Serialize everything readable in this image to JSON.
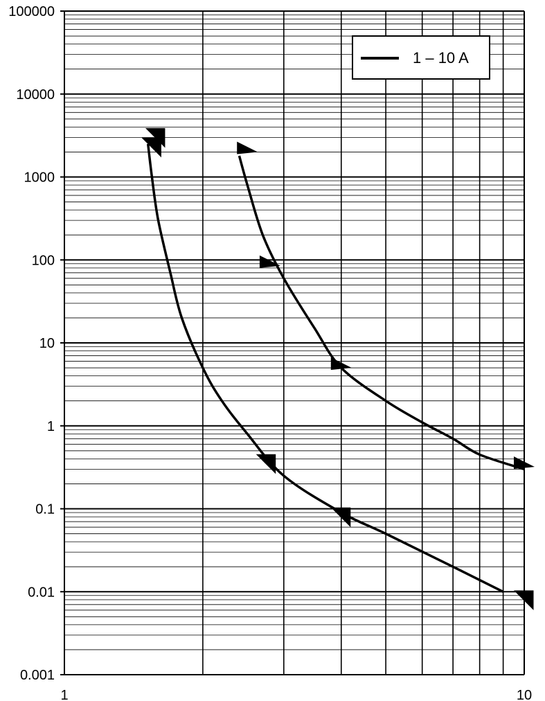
{
  "chart_data": {
    "type": "line",
    "title": "",
    "xlabel": "",
    "ylabel": "",
    "x_scale": "log",
    "y_scale": "log",
    "xlim": [
      1,
      10
    ],
    "ylim": [
      0.001,
      100000
    ],
    "grid": true,
    "legend_position": "top-right",
    "x_ticks": [
      {
        "value": 1,
        "label": "1"
      },
      {
        "value": 10,
        "label": "10"
      }
    ],
    "y_ticks": [
      {
        "value": 0.001,
        "label": "0.001"
      },
      {
        "value": 0.01,
        "label": "0.01"
      },
      {
        "value": 0.1,
        "label": "0.1"
      },
      {
        "value": 1,
        "label": "1"
      },
      {
        "value": 10,
        "label": "10"
      },
      {
        "value": 100,
        "label": "100"
      },
      {
        "value": 1000,
        "label": "1000"
      },
      {
        "value": 10000,
        "label": "10000"
      },
      {
        "value": 100000,
        "label": "100000"
      }
    ],
    "legend": [
      {
        "label": "1 – 10 A",
        "color": "#000000"
      }
    ],
    "series": [
      {
        "color": "#000000",
        "x": [
          1.52,
          1.55,
          1.6,
          1.7,
          1.8,
          2.0,
          2.2,
          2.5,
          3.0,
          4.0,
          5.0,
          7.0,
          9.0
        ],
        "y": [
          2500,
          1000,
          300,
          70,
          20,
          5,
          2,
          0.8,
          0.25,
          0.09,
          0.05,
          0.02,
          0.01
        ]
      },
      {
        "color": "#000000",
        "x": [
          2.4,
          2.5,
          2.7,
          3.0,
          3.5,
          4.0,
          5.0,
          6.0,
          7.0,
          8.0,
          10.0
        ],
        "y": [
          1800,
          800,
          200,
          60,
          15,
          5,
          2,
          1.1,
          0.7,
          0.45,
          0.3
        ]
      }
    ],
    "markers": [
      {
        "x": 1.58,
        "y": 3000,
        "direction": "down"
      },
      {
        "x": 1.55,
        "y": 2300,
        "direction": "down"
      },
      {
        "x": 2.5,
        "y": 2000,
        "direction": "right"
      },
      {
        "x": 2.8,
        "y": 85,
        "direction": "right"
      },
      {
        "x": 4.0,
        "y": 5.0,
        "direction": "right"
      },
      {
        "x": 2.75,
        "y": 0.35,
        "direction": "down"
      },
      {
        "x": 4.0,
        "y": 0.08,
        "direction": "down"
      },
      {
        "x": 10.0,
        "y": 0.32,
        "direction": "right"
      },
      {
        "x": 10.0,
        "y": 0.008,
        "direction": "down"
      }
    ]
  }
}
